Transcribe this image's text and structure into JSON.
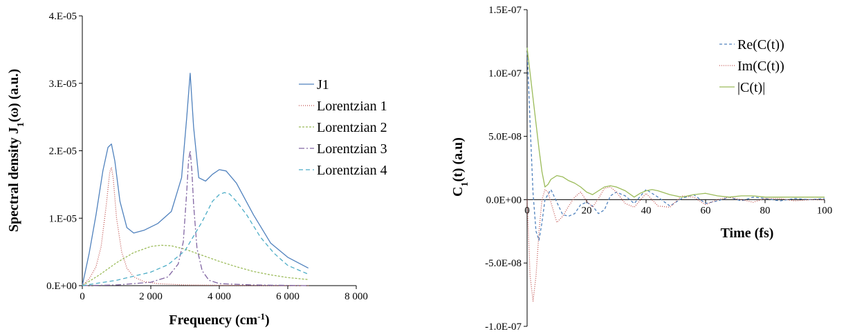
{
  "chart_data": [
    {
      "type": "line",
      "xlabel": "Frequency (cm",
      "xlabel_sup": "-1",
      "xlabel_tail": ")",
      "ylabel": "Spectral density J",
      "ylabel_sub": "1",
      "ylabel_tail": "(ω) (a.u.)",
      "xlim": [
        0,
        8000
      ],
      "ylim": [
        0,
        4e-05
      ],
      "x_ticks": [
        0,
        2000,
        4000,
        6000,
        8000
      ],
      "x_tick_labels": [
        "0",
        "2 000",
        "4 000",
        "6 000",
        "8 000"
      ],
      "y_ticks": [
        0,
        1e-05,
        2e-05,
        3e-05,
        4e-05
      ],
      "y_tick_labels": [
        "0.E+00",
        "1.E-05",
        "2.E-05",
        "3.E-05",
        "4.E-05"
      ],
      "grid": false,
      "legend_position": "right",
      "series": [
        {
          "name": "J1",
          "color": "#4f81bd",
          "dash": "solid",
          "x": [
            0,
            200,
            400,
            600,
            750,
            850,
            950,
            1100,
            1300,
            1500,
            1800,
            2200,
            2600,
            2900,
            3050,
            3150,
            3250,
            3400,
            3600,
            3800,
            4000,
            4200,
            4500,
            5000,
            5500,
            6000,
            6600
          ],
          "y": [
            0,
            4.8e-06,
            1.05e-05,
            1.7e-05,
            2.05e-05,
            2.1e-05,
            1.85e-05,
            1.25e-05,
            8.6e-06,
            7.8e-06,
            8.2e-06,
            9.2e-06,
            1.1e-05,
            1.6e-05,
            2.5e-05,
            3.15e-05,
            2.35e-05,
            1.6e-05,
            1.55e-05,
            1.65e-05,
            1.72e-05,
            1.7e-05,
            1.52e-05,
            1.05e-05,
            6.3e-06,
            4.2e-06,
            2.6e-06
          ]
        },
        {
          "name": "Lorentzian 1",
          "color": "#c0504d",
          "dash": "1,2",
          "x": [
            0,
            200,
            400,
            550,
            700,
            800,
            850,
            900,
            1000,
            1150,
            1300,
            1500,
            1800,
            2200,
            3000,
            4000,
            6000,
            6600
          ],
          "y": [
            0,
            1e-06,
            2.8e-06,
            5.8e-06,
            1.2e-05,
            1.68e-05,
            1.75e-05,
            1.6e-05,
            1e-05,
            5e-06,
            2.6e-06,
            1.3e-06,
            6e-07,
            3e-07,
            1e-07,
            5e-08,
            0,
            0
          ]
        },
        {
          "name": "Lorentzian 2",
          "color": "#9bbb59",
          "dash": "3,2",
          "x": [
            0,
            500,
            1000,
            1500,
            2000,
            2300,
            2600,
            3000,
            3500,
            4000,
            4500,
            5000,
            5500,
            6000,
            6600
          ],
          "y": [
            0,
            1.6e-06,
            3.4e-06,
            4.9e-06,
            5.8e-06,
            6e-06,
            5.9e-06,
            5.4e-06,
            4.5e-06,
            3.6e-06,
            2.8e-06,
            2.1e-06,
            1.6e-06,
            1.2e-06,
            9e-07
          ]
        },
        {
          "name": "Lorentzian 3",
          "color": "#8064a2",
          "dash": "8,3,2,3",
          "x": [
            0,
            1000,
            2000,
            2500,
            2800,
            2950,
            3050,
            3100,
            3150,
            3200,
            3250,
            3350,
            3500,
            3700,
            4000,
            5000,
            6600
          ],
          "y": [
            0,
            1e-07,
            5e-07,
            1.3e-06,
            3.2e-06,
            6.5e-06,
            1.4e-05,
            1.85e-05,
            2e-05,
            1.7e-05,
            1.2e-05,
            5.5e-06,
            2.2e-06,
            8e-07,
            3e-07,
            1e-07,
            0
          ]
        },
        {
          "name": "Lorentzian 4",
          "color": "#4bacc6",
          "dash": "6,4",
          "x": [
            0,
            1000,
            2000,
            2500,
            3000,
            3500,
            3800,
            4000,
            4150,
            4300,
            4500,
            4800,
            5200,
            5600,
            6000,
            6600
          ],
          "y": [
            0,
            8e-07,
            2e-06,
            3.1e-06,
            5.2e-06,
            9.5e-06,
            1.25e-05,
            1.35e-05,
            1.38e-05,
            1.36e-05,
            1.25e-05,
            1.05e-05,
            7.2e-06,
            4.8e-06,
            3e-06,
            1.7e-06
          ]
        }
      ]
    },
    {
      "type": "line",
      "xlabel": "Time (fs)",
      "ylabel": "C",
      "ylabel_sub": "1",
      "ylabel_tail": "(t) (a.u)",
      "xlim": [
        0,
        100
      ],
      "ylim": [
        -1e-07,
        1.5e-07
      ],
      "x_ticks": [
        0,
        20,
        40,
        60,
        80,
        100
      ],
      "x_tick_labels": [
        "0",
        "20",
        "40",
        "60",
        "80",
        "100"
      ],
      "y_ticks": [
        -1e-07,
        -5e-08,
        0,
        5e-08,
        1e-07,
        1.5e-07
      ],
      "y_tick_labels": [
        "-1.0E-07",
        "-5.0E-08",
        "0.0E+00",
        "5.0E-08",
        "1.0E-07",
        "1.5E-07"
      ],
      "grid": false,
      "legend_position": "right",
      "series": [
        {
          "name": "Re(C(t))",
          "color": "#4f81bd",
          "dash": "4,3",
          "x": [
            0,
            1,
            2,
            3,
            4,
            5,
            6,
            8,
            10,
            12,
            14,
            16,
            18,
            20,
            22,
            24,
            26,
            28,
            30,
            33,
            36,
            40,
            44,
            48,
            52,
            56,
            60,
            64,
            68,
            72,
            76,
            80,
            85,
            90,
            95,
            100
          ],
          "y": [
            1.2e-07,
            6e-08,
            5e-09,
            -2.5e-08,
            -3.2e-08,
            -1.8e-08,
            0,
            8e-09,
            -2e-09,
            -1.2e-08,
            -1.3e-08,
            -1.1e-08,
            -4e-09,
            -2e-09,
            -5e-09,
            -1.1e-08,
            -8e-09,
            3e-09,
            6e-09,
            3e-09,
            -3e-09,
            8e-09,
            2e-09,
            -5e-09,
            1e-09,
            4e-09,
            -3e-09,
            -1e-09,
            2e-09,
            -1e-09,
            2e-09,
            1e-09,
            -1e-09,
            1e-09,
            0,
            1e-09
          ]
        },
        {
          "name": "Im(C(t))",
          "color": "#c0504d",
          "dash": "1,2",
          "x": [
            0,
            1,
            2,
            3,
            4,
            5,
            6,
            7,
            8,
            10,
            12,
            14,
            16,
            18,
            20,
            22,
            24,
            26,
            28,
            30,
            33,
            36,
            40,
            44,
            48,
            52,
            56,
            60,
            64,
            68,
            72,
            76,
            80,
            85,
            90,
            95,
            100
          ],
          "y": [
            0,
            -6e-08,
            -8e-08,
            -6e-08,
            -2.5e-08,
            0,
            8e-09,
            6e-09,
            -2e-09,
            -1.8e-08,
            -1.3e-08,
            -5e-09,
            2e-09,
            6e-09,
            -1e-09,
            -6e-09,
            1e-09,
            9e-09,
            1e-08,
            6e-09,
            -3e-09,
            -6e-09,
            5e-09,
            -5e-09,
            -6e-09,
            3e-09,
            2e-09,
            -4e-09,
            0,
            2e-09,
            0,
            -2e-09,
            1e-09,
            1e-09,
            -1e-09,
            0,
            0
          ]
        },
        {
          "name": "|C(t)|",
          "color": "#9bbb59",
          "dash": "solid",
          "x": [
            0,
            1,
            2,
            3,
            4,
            5,
            6,
            7,
            8,
            10,
            12,
            14,
            16,
            18,
            20,
            22,
            24,
            26,
            28,
            30,
            33,
            36,
            38,
            40,
            42,
            44,
            48,
            52,
            56,
            60,
            64,
            68,
            72,
            76,
            80,
            85,
            90,
            95,
            100
          ],
          "y": [
            1.2e-07,
            1e-07,
            8e-08,
            6e-08,
            4e-08,
            2.2e-08,
            1e-08,
            1.2e-08,
            1.6e-08,
            1.9e-08,
            1.8e-08,
            1.5e-08,
            1.3e-08,
            1e-08,
            6e-09,
            4e-09,
            7e-09,
            1e-08,
            1.1e-08,
            1e-08,
            7e-09,
            2e-09,
            5e-09,
            7e-09,
            8e-09,
            7e-09,
            4e-09,
            2e-09,
            4e-09,
            5e-09,
            3e-09,
            2e-09,
            3e-09,
            3e-09,
            2e-09,
            2e-09,
            2e-09,
            2e-09,
            2e-09
          ]
        }
      ]
    }
  ]
}
